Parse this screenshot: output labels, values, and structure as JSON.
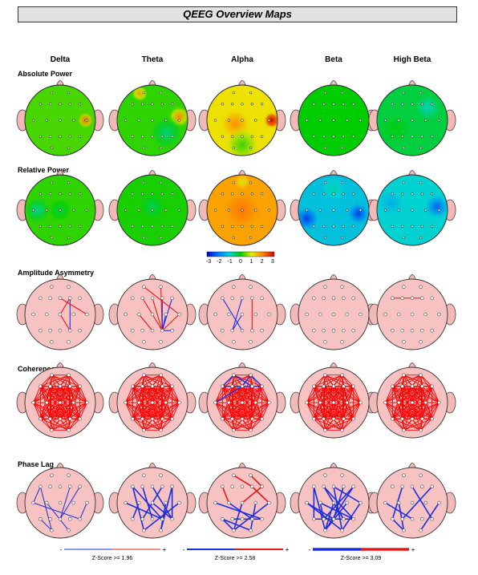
{
  "title": "QEEG Overview Maps",
  "bands": [
    "Delta",
    "Theta",
    "Alpha",
    "Beta",
    "High Beta"
  ],
  "sections": [
    {
      "label": "Absolute Power",
      "kind": "power",
      "maps": [
        {
          "base": 0.3,
          "blobs": [
            {
              "u": 0.86,
              "v": 0.5,
              "r": 0.12,
              "z": 2.0
            }
          ]
        },
        {
          "base": 0.2,
          "blobs": [
            {
              "u": 0.88,
              "v": 0.45,
              "r": 0.16,
              "z": 1.8
            },
            {
              "u": 0.32,
              "v": 0.12,
              "r": 0.12,
              "z": 1.6
            },
            {
              "u": 0.7,
              "v": 0.68,
              "r": 0.25,
              "z": -0.8
            }
          ]
        },
        {
          "base": 1.1,
          "blobs": [
            {
              "u": 0.92,
              "v": 0.5,
              "r": 0.12,
              "z": 2.8
            },
            {
              "u": 0.4,
              "v": 0.55,
              "r": 0.22,
              "z": 0.8
            },
            {
              "u": 0.5,
              "v": 0.85,
              "r": 0.25,
              "z": -0.9
            }
          ]
        },
        {
          "base": 0.0,
          "blobs": []
        },
        {
          "base": -0.3,
          "blobs": [
            {
              "u": 0.72,
              "v": 0.32,
              "r": 0.2,
              "z": -0.6
            },
            {
              "u": 0.25,
              "v": 0.62,
              "r": 0.25,
              "z": 0.25
            }
          ]
        }
      ]
    },
    {
      "label": "Relative Power",
      "kind": "power",
      "maps": [
        {
          "base": 0.2,
          "blobs": [
            {
              "u": 0.18,
              "v": 0.5,
              "r": 0.2,
              "z": -0.9
            },
            {
              "u": 0.5,
              "v": 0.5,
              "r": 0.18,
              "z": -0.5
            }
          ]
        },
        {
          "base": 0.1,
          "blobs": [
            {
              "u": 0.5,
              "v": 0.45,
              "r": 0.2,
              "z": -0.5
            }
          ]
        },
        {
          "base": 1.7,
          "blobs": [
            {
              "u": 0.5,
              "v": 0.5,
              "r": 0.28,
              "z": 0.4
            },
            {
              "u": 0.5,
              "v": 0.1,
              "r": 0.12,
              "z": -0.8
            }
          ]
        },
        {
          "base": -1.2,
          "blobs": [
            {
              "u": 0.12,
              "v": 0.62,
              "r": 0.18,
              "z": -1.3
            },
            {
              "u": 0.85,
              "v": 0.55,
              "r": 0.16,
              "z": -1.3
            },
            {
              "u": 0.5,
              "v": 0.2,
              "r": 0.2,
              "z": 0.4
            }
          ]
        },
        {
          "base": -1.0,
          "blobs": [
            {
              "u": 0.85,
              "v": 0.45,
              "r": 0.18,
              "z": -1.2
            },
            {
              "u": 0.2,
              "v": 0.4,
              "r": 0.2,
              "z": -0.4
            }
          ]
        }
      ]
    },
    {
      "label": "Amplitude Asymmetry",
      "kind": "lines",
      "maps": [
        {
          "lines": [
            [
              5,
              9,
              "red"
            ],
            [
              5,
              15,
              "blue"
            ],
            [
              9,
              15,
              "red"
            ],
            [
              4,
              11,
              "red"
            ]
          ]
        },
        {
          "lines": [
            [
              1,
              15,
              "red"
            ],
            [
              3,
              15,
              "red"
            ],
            [
              5,
              15,
              "blue"
            ],
            [
              10,
              15,
              "blue"
            ],
            [
              6,
              15,
              "blue"
            ],
            [
              11,
              15,
              "red"
            ],
            [
              16,
              15,
              "blue"
            ],
            [
              0,
              11,
              "red"
            ],
            [
              8,
              14,
              "red"
            ],
            [
              4,
              15,
              "red"
            ]
          ]
        },
        {
          "lines": [
            [
              4,
              13,
              "blue"
            ],
            [
              9,
              13,
              "blue"
            ],
            [
              2,
              14,
              "blue"
            ],
            [
              5,
              15,
              "red"
            ]
          ]
        },
        {
          "lines": []
        },
        {
          "lines": [
            [
              5,
              2,
              "red"
            ]
          ]
        }
      ]
    },
    {
      "label": "Coherence",
      "kind": "coherence",
      "maps": [
        {
          "extra": []
        },
        {
          "extra": []
        },
        {
          "extra": [
            [
              0,
              2,
              "blue"
            ],
            [
              2,
              6,
              "blue"
            ],
            [
              1,
              4,
              "blue"
            ],
            [
              4,
              7,
              "blue"
            ],
            [
              3,
              5,
              "blue"
            ],
            [
              0,
              5,
              "blue"
            ],
            [
              1,
              6,
              "blue"
            ],
            [
              2,
              4,
              "blue"
            ]
          ]
        },
        {
          "extra": []
        },
        {
          "extra": []
        }
      ]
    },
    {
      "label": "Phase Lag",
      "kind": "lines",
      "maps": [
        {
          "lines": [
            [
              2,
              7,
              "blue"
            ],
            [
              2,
              17,
              "blue"
            ],
            [
              7,
              16,
              "blue"
            ],
            [
              6,
              14,
              "blue"
            ],
            [
              11,
              16,
              "blue"
            ],
            [
              12,
              17,
              "blue"
            ],
            [
              8,
              18,
              "blue"
            ],
            [
              5,
              14,
              "blue"
            ]
          ]
        },
        {
          "lines": [
            [
              2,
              17,
              "blue"
            ],
            [
              4,
              16,
              "blue"
            ],
            [
              6,
              18,
              "blue"
            ],
            [
              5,
              13,
              "blue"
            ],
            [
              3,
              14,
              "blue"
            ],
            [
              9,
              16,
              "blue"
            ],
            [
              11,
              17,
              "blue"
            ],
            [
              8,
              12,
              "blue"
            ],
            [
              7,
              15,
              "blue"
            ],
            [
              10,
              18,
              "blue"
            ],
            [
              2,
              15,
              "blue"
            ],
            [
              6,
              16,
              "blue"
            ]
          ]
        },
        {
          "lines": [
            [
              0,
              5,
              "red"
            ],
            [
              1,
              6,
              "red"
            ],
            [
              5,
              11,
              "red"
            ],
            [
              6,
              9,
              "red"
            ],
            [
              2,
              8,
              "red"
            ],
            [
              9,
              17,
              "blue"
            ],
            [
              12,
              18,
              "blue"
            ],
            [
              7,
              16,
              "blue"
            ],
            [
              11,
              17,
              "blue"
            ],
            [
              13,
              16,
              "blue"
            ],
            [
              8,
              15,
              "blue"
            ],
            [
              10,
              18,
              "blue"
            ],
            [
              12,
              17,
              "blue"
            ]
          ]
        },
        {
          "lines": [
            [
              2,
              17,
              "blue"
            ],
            [
              3,
              16,
              "blue"
            ],
            [
              4,
              18,
              "blue"
            ],
            [
              5,
              14,
              "blue"
            ],
            [
              6,
              13,
              "blue"
            ],
            [
              7,
              18,
              "blue"
            ],
            [
              8,
              16,
              "blue"
            ],
            [
              9,
              17,
              "blue"
            ],
            [
              2,
              12,
              "blue"
            ],
            [
              3,
              15,
              "blue"
            ],
            [
              4,
              11,
              "blue"
            ],
            [
              7,
              14,
              "blue"
            ],
            [
              8,
              13,
              "blue"
            ],
            [
              11,
              18,
              "blue"
            ],
            [
              12,
              16,
              "blue"
            ],
            [
              9,
              15,
              "blue"
            ],
            [
              10,
              17,
              "blue"
            ],
            [
              6,
              17,
              "blue"
            ]
          ]
        },
        {
          "lines": [
            [
              4,
              16,
              "blue"
            ],
            [
              3,
              12,
              "blue"
            ],
            [
              6,
              13,
              "blue"
            ],
            [
              8,
              17,
              "blue"
            ],
            [
              7,
              14,
              "blue"
            ],
            [
              11,
              18,
              "blue"
            ],
            [
              12,
              17,
              "blue"
            ]
          ]
        }
      ]
    }
  ],
  "colorbar": {
    "ticks": [
      "-3",
      "-2",
      "-1",
      "0",
      "1",
      "2",
      "3"
    ]
  },
  "legends": [
    {
      "label": "Z-Score >= 1.96",
      "minus": "-",
      "plus": "+",
      "style": "thin"
    },
    {
      "label": "Z-Score >= 2.58",
      "minus": "-",
      "plus": "+",
      "style": "medium"
    },
    {
      "label": "Z-Score >= 3.09",
      "minus": "-",
      "plus": "+",
      "style": "thick"
    }
  ]
}
